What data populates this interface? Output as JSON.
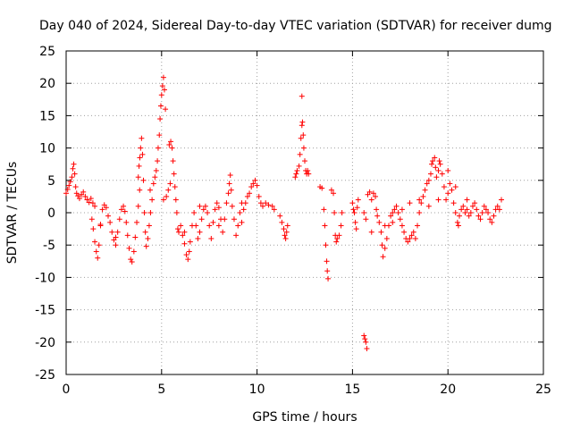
{
  "chart_data": {
    "type": "scatter",
    "title": "Day 040 of 2024, Sidereal Day-to-day VTEC variation (SDTVAR) for receiver dumg",
    "xlabel": "GPS time / hours",
    "ylabel": "SDTVAR / TECUs",
    "xlim": [
      0,
      25
    ],
    "ylim": [
      -25,
      25
    ],
    "xticks": [
      0,
      5,
      10,
      15,
      20,
      25
    ],
    "yticks": [
      -25,
      -20,
      -15,
      -10,
      -5,
      0,
      5,
      10,
      15,
      20,
      25
    ],
    "grid": true,
    "marker": "+",
    "color": "#ff0000",
    "series": [
      {
        "name": "SDTVAR",
        "points": [
          [
            0.0,
            3.0
          ],
          [
            0.08,
            3.6
          ],
          [
            0.15,
            4.2
          ],
          [
            0.22,
            4.8
          ],
          [
            0.3,
            5.5
          ],
          [
            0.35,
            6.8
          ],
          [
            0.4,
            7.5
          ],
          [
            0.45,
            6.0
          ],
          [
            0.5,
            4.0
          ],
          [
            0.55,
            3.0
          ],
          [
            0.62,
            2.6
          ],
          [
            0.7,
            2.2
          ],
          [
            0.8,
            2.8
          ],
          [
            0.9,
            3.2
          ],
          [
            1.0,
            2.5
          ],
          [
            1.1,
            2.0
          ],
          [
            1.2,
            1.6
          ],
          [
            1.3,
            2.2
          ],
          [
            1.4,
            1.5
          ],
          [
            1.5,
            1.0
          ],
          [
            1.35,
            -1.0
          ],
          [
            1.42,
            -2.5
          ],
          [
            1.5,
            -4.5
          ],
          [
            1.58,
            -6.0
          ],
          [
            1.65,
            -7.0
          ],
          [
            1.72,
            -5.0
          ],
          [
            1.8,
            -2.0
          ],
          [
            1.9,
            0.5
          ],
          [
            2.0,
            1.2
          ],
          [
            2.1,
            0.8
          ],
          [
            2.2,
            -0.5
          ],
          [
            2.3,
            -1.5
          ],
          [
            2.4,
            -3.0
          ],
          [
            2.5,
            -4.2
          ],
          [
            2.6,
            -5.0
          ],
          [
            2.7,
            -3.0
          ],
          [
            2.8,
            -1.0
          ],
          [
            2.9,
            0.5
          ],
          [
            3.0,
            1.0
          ],
          [
            3.08,
            0.2
          ],
          [
            3.15,
            -1.5
          ],
          [
            3.22,
            -3.5
          ],
          [
            3.3,
            -5.5
          ],
          [
            3.38,
            -7.2
          ],
          [
            3.45,
            -7.6
          ],
          [
            3.55,
            -6.0
          ],
          [
            3.62,
            -3.8
          ],
          [
            3.7,
            -1.5
          ],
          [
            3.78,
            1.0
          ],
          [
            3.85,
            3.5
          ],
          [
            3.78,
            5.5
          ],
          [
            3.82,
            7.2
          ],
          [
            3.86,
            8.5
          ],
          [
            3.9,
            10.0
          ],
          [
            3.95,
            11.5
          ],
          [
            4.0,
            9.0
          ],
          [
            4.05,
            5.0
          ],
          [
            4.1,
            0.0
          ],
          [
            4.15,
            -3.0
          ],
          [
            4.2,
            -5.2
          ],
          [
            4.28,
            -4.0
          ],
          [
            4.35,
            -2.0
          ],
          [
            4.42,
            0.0
          ],
          [
            4.5,
            2.0
          ],
          [
            4.58,
            4.5
          ],
          [
            4.65,
            5.5
          ],
          [
            4.72,
            6.5
          ],
          [
            4.78,
            8.0
          ],
          [
            4.82,
            10.0
          ],
          [
            4.88,
            12.0
          ],
          [
            4.92,
            14.5
          ],
          [
            4.96,
            16.5
          ],
          [
            5.0,
            18.2
          ],
          [
            5.05,
            19.6
          ],
          [
            5.1,
            20.9
          ],
          [
            5.15,
            19.0
          ],
          [
            5.2,
            16.0
          ],
          [
            5.1,
            2.0
          ],
          [
            5.25,
            2.5
          ],
          [
            5.35,
            3.5
          ],
          [
            5.45,
            4.5
          ],
          [
            5.4,
            10.5
          ],
          [
            5.48,
            11.0
          ],
          [
            5.55,
            10.0
          ],
          [
            5.6,
            8.0
          ],
          [
            5.65,
            6.0
          ],
          [
            5.7,
            4.0
          ],
          [
            5.75,
            2.0
          ],
          [
            5.8,
            0.0
          ],
          [
            5.85,
            -2.5
          ],
          [
            5.9,
            -3.0
          ],
          [
            6.0,
            -2.0
          ],
          [
            6.1,
            -3.5
          ],
          [
            6.2,
            -4.8
          ],
          [
            6.3,
            -6.5
          ],
          [
            6.38,
            -7.2
          ],
          [
            6.45,
            -6.0
          ],
          [
            6.5,
            -4.5
          ],
          [
            6.6,
            -2.0
          ],
          [
            6.7,
            0.0
          ],
          [
            6.8,
            -2.0
          ],
          [
            6.9,
            -4.0
          ],
          [
            7.0,
            -3.0
          ],
          [
            7.1,
            -1.0
          ],
          [
            7.2,
            0.5
          ],
          [
            7.3,
            1.0
          ],
          [
            7.4,
            0.0
          ],
          [
            7.5,
            -2.0
          ],
          [
            7.6,
            -4.0
          ],
          [
            7.7,
            -1.5
          ],
          [
            7.8,
            0.5
          ],
          [
            7.9,
            1.5
          ],
          [
            8.0,
            0.8
          ],
          [
            8.1,
            -1.0
          ],
          [
            8.2,
            -3.0
          ],
          [
            8.3,
            -1.0
          ],
          [
            8.4,
            1.5
          ],
          [
            8.5,
            3.0
          ],
          [
            8.55,
            4.5
          ],
          [
            8.6,
            5.8
          ],
          [
            8.65,
            3.5
          ],
          [
            8.7,
            1.0
          ],
          [
            8.8,
            -1.0
          ],
          [
            8.9,
            -3.5
          ],
          [
            9.0,
            -2.0
          ],
          [
            9.1,
            0.0
          ],
          [
            9.2,
            1.5
          ],
          [
            9.3,
            0.5
          ],
          [
            9.4,
            1.5
          ],
          [
            9.5,
            2.5
          ],
          [
            9.6,
            3.0
          ],
          [
            9.7,
            4.0
          ],
          [
            9.8,
            4.5
          ],
          [
            9.9,
            5.0
          ],
          [
            10.0,
            4.2
          ],
          [
            10.1,
            2.5
          ],
          [
            10.2,
            1.5
          ],
          [
            10.3,
            1.0
          ],
          [
            10.45,
            1.5
          ],
          [
            10.6,
            1.2
          ],
          [
            10.8,
            1.0
          ],
          [
            10.9,
            0.5
          ],
          [
            11.2,
            -0.5
          ],
          [
            11.3,
            -1.5
          ],
          [
            11.4,
            -2.5
          ],
          [
            11.45,
            -3.5
          ],
          [
            11.5,
            -4.0
          ],
          [
            11.55,
            -3.0
          ],
          [
            11.6,
            -2.0
          ],
          [
            12.0,
            5.5
          ],
          [
            12.05,
            6.0
          ],
          [
            12.1,
            6.5
          ],
          [
            12.2,
            7.2
          ],
          [
            12.25,
            9.0
          ],
          [
            12.3,
            11.5
          ],
          [
            12.35,
            13.5
          ],
          [
            12.38,
            14.0
          ],
          [
            12.42,
            12.0
          ],
          [
            12.45,
            10.0
          ],
          [
            12.5,
            8.0
          ],
          [
            12.55,
            6.5
          ],
          [
            12.6,
            6.0
          ],
          [
            12.65,
            6.5
          ],
          [
            12.7,
            6.0
          ],
          [
            12.35,
            18.0
          ],
          [
            13.3,
            4.0
          ],
          [
            13.4,
            3.8
          ],
          [
            13.5,
            0.5
          ],
          [
            13.55,
            -2.0
          ],
          [
            13.6,
            -5.0
          ],
          [
            13.65,
            -7.5
          ],
          [
            13.68,
            -9.0
          ],
          [
            13.72,
            -10.2
          ],
          [
            13.9,
            3.5
          ],
          [
            14.0,
            3.0
          ],
          [
            14.05,
            0.0
          ],
          [
            14.1,
            -3.5
          ],
          [
            14.15,
            -4.5
          ],
          [
            14.2,
            -4.0
          ],
          [
            14.3,
            -3.5
          ],
          [
            14.4,
            -2.0
          ],
          [
            14.45,
            0.0
          ],
          [
            15.0,
            1.5
          ],
          [
            15.05,
            0.5
          ],
          [
            15.1,
            0.0
          ],
          [
            15.15,
            -1.5
          ],
          [
            15.2,
            -2.5
          ],
          [
            15.25,
            0.8
          ],
          [
            15.3,
            2.0
          ],
          [
            15.6,
            -19.0
          ],
          [
            15.65,
            -19.5
          ],
          [
            15.7,
            -20.0
          ],
          [
            15.75,
            -21.0
          ],
          [
            15.8,
            2.8
          ],
          [
            15.9,
            3.2
          ],
          [
            16.0,
            2.0
          ],
          [
            16.1,
            3.0
          ],
          [
            16.2,
            2.5
          ],
          [
            16.25,
            0.5
          ],
          [
            16.3,
            -0.5
          ],
          [
            16.4,
            -1.5
          ],
          [
            16.5,
            -3.0
          ],
          [
            16.55,
            -5.0
          ],
          [
            16.6,
            -6.8
          ],
          [
            16.7,
            -5.5
          ],
          [
            16.8,
            -4.0
          ],
          [
            16.9,
            -2.0
          ],
          [
            17.0,
            -0.5
          ],
          [
            17.1,
            0.0
          ],
          [
            17.2,
            0.5
          ],
          [
            17.3,
            1.0
          ],
          [
            17.4,
            0.0
          ],
          [
            17.5,
            -1.0
          ],
          [
            17.6,
            -2.0
          ],
          [
            17.7,
            -3.0
          ],
          [
            17.8,
            -4.0
          ],
          [
            17.9,
            -4.5
          ],
          [
            18.0,
            -4.0
          ],
          [
            18.1,
            -3.5
          ],
          [
            18.2,
            -3.0
          ],
          [
            18.3,
            -4.0
          ],
          [
            18.4,
            -2.0
          ],
          [
            18.5,
            0.0
          ],
          [
            18.6,
            1.5
          ],
          [
            18.7,
            2.5
          ],
          [
            18.8,
            3.5
          ],
          [
            18.9,
            4.5
          ],
          [
            19.0,
            5.0
          ],
          [
            19.1,
            6.0
          ],
          [
            19.15,
            7.5
          ],
          [
            19.2,
            8.0
          ],
          [
            19.3,
            8.5
          ],
          [
            19.35,
            7.0
          ],
          [
            19.4,
            5.5
          ],
          [
            19.5,
            6.5
          ],
          [
            19.55,
            8.0
          ],
          [
            19.6,
            7.5
          ],
          [
            19.7,
            6.0
          ],
          [
            19.8,
            4.0
          ],
          [
            19.9,
            2.0
          ],
          [
            20.0,
            3.0
          ],
          [
            20.1,
            4.5
          ],
          [
            20.2,
            3.5
          ],
          [
            20.3,
            1.5
          ],
          [
            20.4,
            0.0
          ],
          [
            20.5,
            -1.5
          ],
          [
            20.55,
            -2.0
          ],
          [
            20.6,
            -0.5
          ],
          [
            20.7,
            0.5
          ],
          [
            20.8,
            1.0
          ],
          [
            20.9,
            0.0
          ],
          [
            21.0,
            0.5
          ],
          [
            21.1,
            -0.5
          ],
          [
            21.2,
            0.0
          ],
          [
            21.3,
            1.0
          ],
          [
            21.4,
            1.5
          ],
          [
            21.5,
            0.5
          ],
          [
            21.6,
            -0.5
          ],
          [
            21.7,
            -1.0
          ],
          [
            21.8,
            0.0
          ],
          [
            21.9,
            1.0
          ],
          [
            22.0,
            0.5
          ],
          [
            22.1,
            0.0
          ],
          [
            22.2,
            -1.0
          ],
          [
            22.3,
            -1.5
          ],
          [
            22.4,
            -0.5
          ],
          [
            22.5,
            0.5
          ],
          [
            22.6,
            1.0
          ],
          [
            22.7,
            0.5
          ],
          [
            22.8,
            2.0
          ],
          [
            15.6,
            0.0
          ],
          [
            15.7,
            -1.0
          ],
          [
            16.0,
            -3.0
          ],
          [
            16.7,
            -2.0
          ],
          [
            17.1,
            -1.5
          ],
          [
            17.6,
            0.5
          ],
          [
            18.0,
            1.5
          ],
          [
            18.5,
            2.0
          ],
          [
            19.0,
            1.0
          ],
          [
            19.5,
            2.0
          ],
          [
            20.0,
            6.5
          ],
          [
            20.4,
            4.0
          ],
          [
            21.0,
            2.0
          ],
          [
            1.8,
            -1.8
          ],
          [
            2.6,
            -3.8
          ],
          [
            4.4,
            3.5
          ],
          [
            6.2,
            -3.0
          ],
          [
            7.0,
            1.0
          ],
          [
            8.0,
            -2.0
          ],
          [
            9.2,
            -1.5
          ]
        ]
      }
    ]
  }
}
